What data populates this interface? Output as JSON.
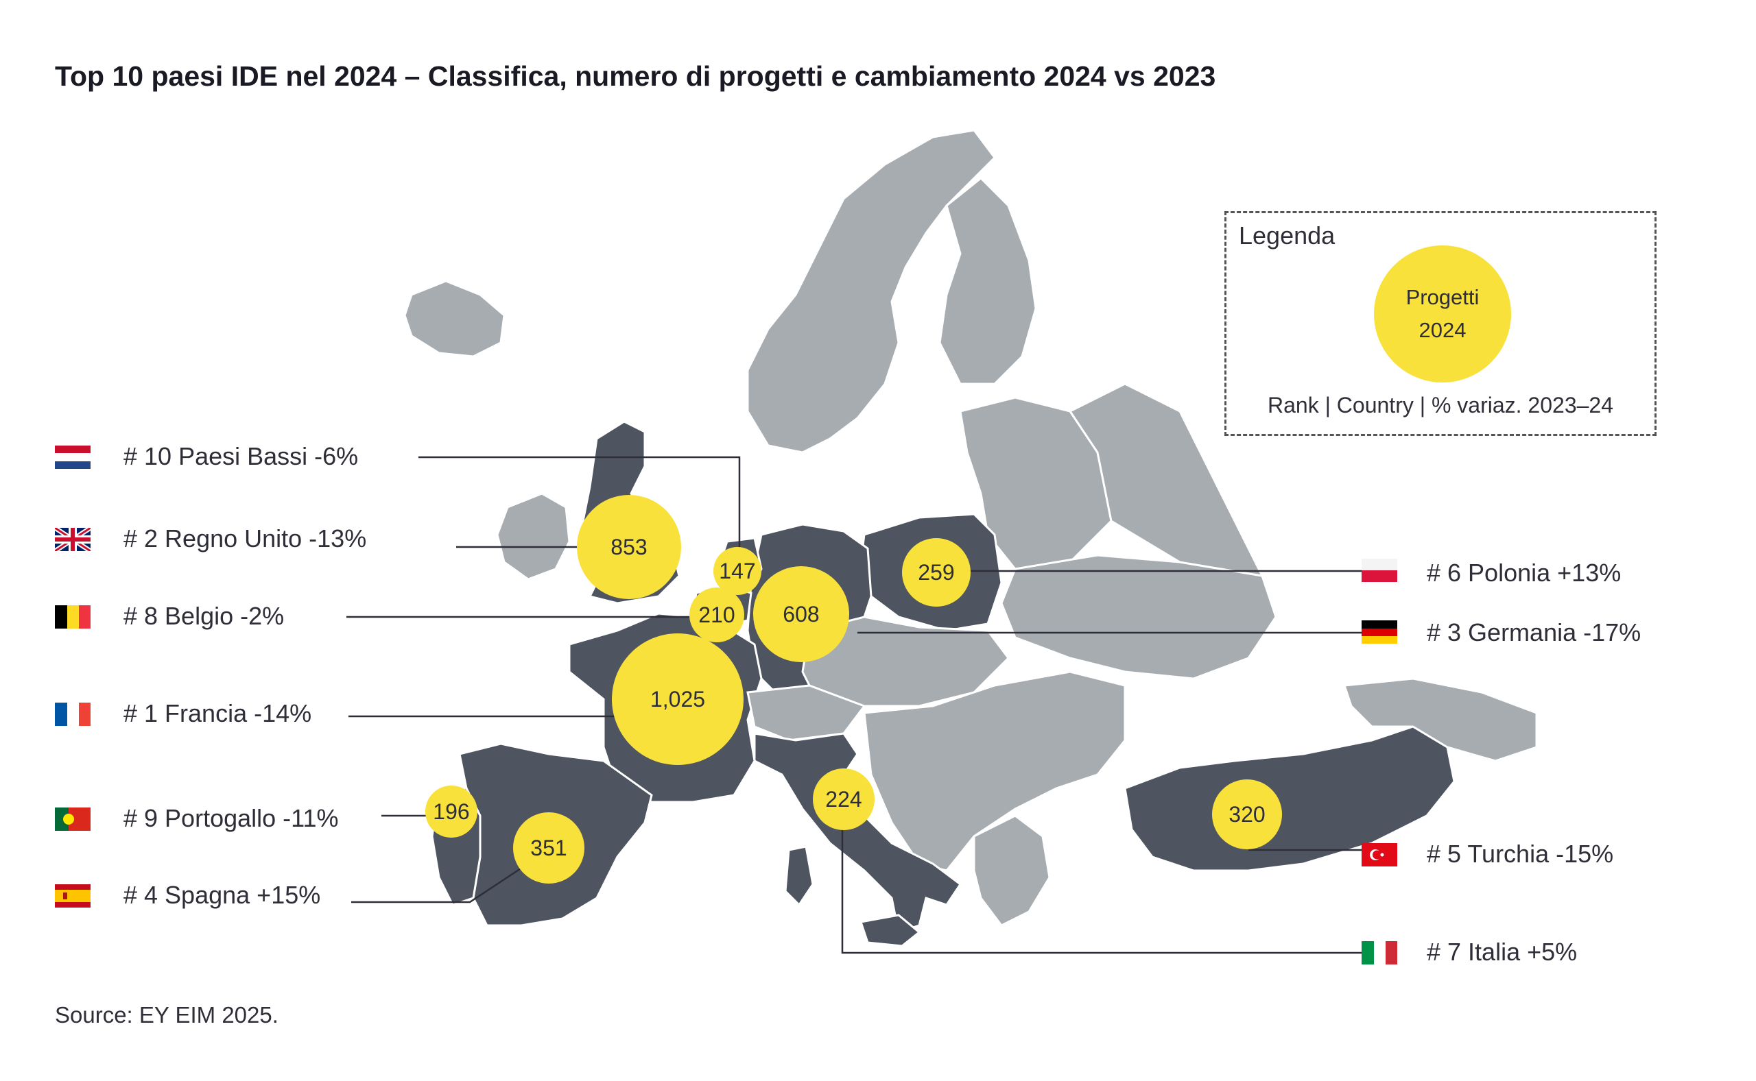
{
  "title": "Top 10 paesi IDE nel 2024 – Classifica, numero di progetti e cambiamento 2024 vs 2023",
  "source": "Source: EY EIM 2025.",
  "legend": {
    "title": "Legenda",
    "bubble_label": "Progetti\n2024",
    "caption": "Rank | Country | % variaz. 2023–24"
  },
  "colors": {
    "highlight_country": "#4f5560",
    "other_country": "#a7acb1",
    "bubble": "#f9e13c"
  },
  "countries": [
    {
      "rank_label": "# 10  Paesi Bassi  -6%",
      "projects": "147",
      "flag": "netherlands-flag"
    },
    {
      "rank_label": "# 2  Regno Unito  -13%",
      "projects": "853",
      "flag": "uk-flag"
    },
    {
      "rank_label": "# 8  Belgio  -2%",
      "projects": "210",
      "flag": "belgium-flag"
    },
    {
      "rank_label": "# 1  Francia  -14%",
      "projects": "1,025",
      "flag": "france-flag"
    },
    {
      "rank_label": "# 9  Portogallo  -11%",
      "projects": "196",
      "flag": "portugal-flag"
    },
    {
      "rank_label": "# 4  Spagna  +15%",
      "projects": "351",
      "flag": "spain-flag"
    },
    {
      "rank_label": "# 6  Polonia  +13%",
      "projects": "259",
      "flag": "poland-flag"
    },
    {
      "rank_label": "# 3  Germania  -17%",
      "projects": "608",
      "flag": "germany-flag"
    },
    {
      "rank_label": "# 5  Turchia  -15%",
      "projects": "320",
      "flag": "turkey-flag"
    },
    {
      "rank_label": "# 7  Italia  +5%",
      "projects": "224",
      "flag": "italy-flag"
    }
  ]
}
